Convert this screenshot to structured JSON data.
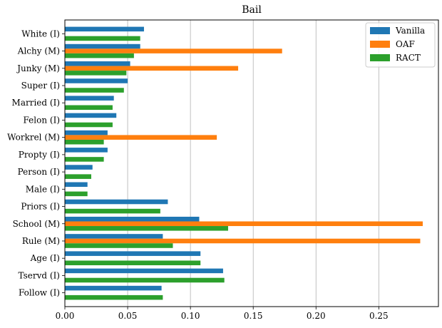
{
  "chart_data": {
    "type": "bar",
    "orientation": "horizontal",
    "title": "Bail",
    "xlabel": "",
    "ylabel": "",
    "xlim": [
      0,
      0.2975
    ],
    "xticks": [
      "0.00",
      "0.05",
      "0.10",
      "0.15",
      "0.20",
      "0.25"
    ],
    "grid": "vertical",
    "legend_position": "top-right",
    "categories": [
      "White (I)",
      "Alchy (M)",
      "Junky (M)",
      "Super (I)",
      "Married (I)",
      "Felon (I)",
      "Workrel (M)",
      "Propty (I)",
      "Person (I)",
      "Male (I)",
      "Priors (I)",
      "School (M)",
      "Rule (M)",
      "Age (I)",
      "Tservd (I)",
      "Follow (I)"
    ],
    "series": [
      {
        "name": "Vanilla",
        "color": "#1f77b4",
        "values": [
          0.063,
          0.06,
          0.052,
          0.05,
          0.039,
          0.041,
          0.034,
          0.034,
          0.022,
          0.018,
          0.082,
          0.107,
          0.078,
          0.108,
          0.126,
          0.077
        ]
      },
      {
        "name": "OAF",
        "color": "#ff7f0e",
        "values": [
          0.0,
          0.173,
          0.138,
          0.0,
          0.0,
          0.0,
          0.121,
          0.0,
          0.0,
          0.0,
          0.0,
          0.285,
          0.283,
          0.0,
          0.0,
          0.0
        ]
      },
      {
        "name": "RACT",
        "color": "#2ca02c",
        "values": [
          0.06,
          0.055,
          0.049,
          0.047,
          0.038,
          0.038,
          0.031,
          0.031,
          0.021,
          0.018,
          0.076,
          0.13,
          0.086,
          0.108,
          0.127,
          0.078
        ]
      }
    ]
  }
}
